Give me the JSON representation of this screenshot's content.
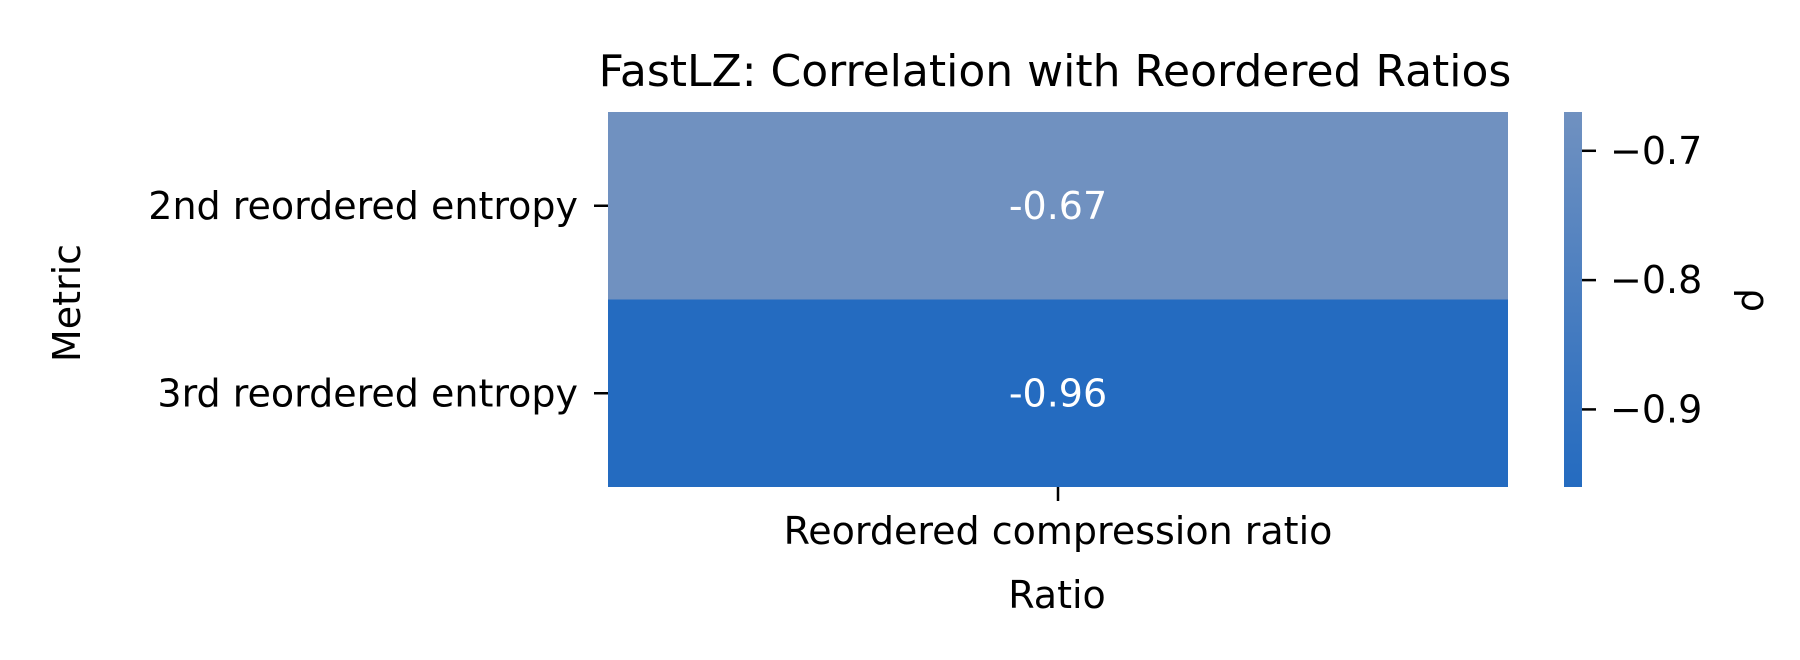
{
  "chart_data": {
    "type": "heatmap",
    "title": "FastLZ: Correlation with Reordered Ratios",
    "xlabel": "Ratio",
    "ylabel": "Metric",
    "x_categories": [
      "Reordered compression ratio"
    ],
    "y_categories": [
      "2nd reordered entropy",
      "3rd reordered entropy"
    ],
    "values": [
      [
        -0.67
      ],
      [
        -0.96
      ]
    ],
    "value_labels": [
      [
        "-0.67"
      ],
      [
        "-0.96"
      ]
    ],
    "colorbar": {
      "label": "ρ",
      "range": [
        -0.96,
        -0.67
      ],
      "ticks": [
        -0.7,
        -0.8,
        -0.9
      ],
      "tick_labels": [
        "−0.7",
        "−0.8",
        "−0.9"
      ]
    },
    "colors": {
      "high": "#7091C0",
      "low": "#246BC0"
    }
  }
}
